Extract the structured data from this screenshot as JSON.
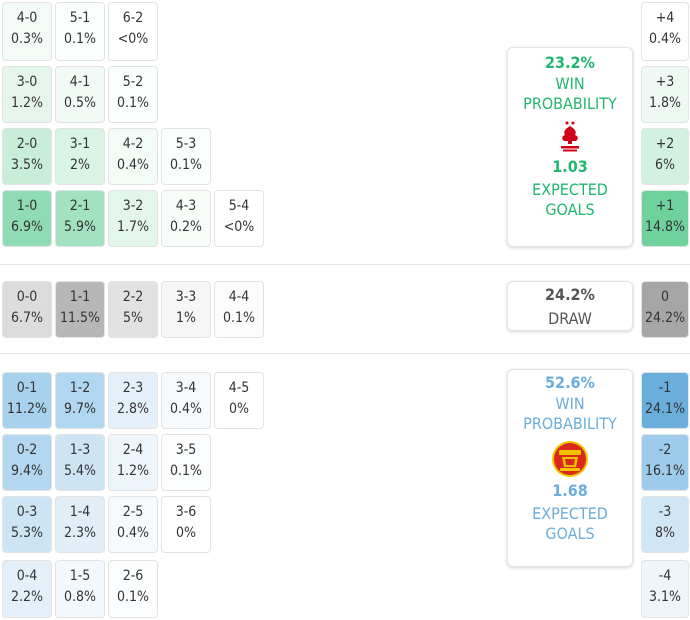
{
  "home": {
    "win_prob": "23.2%",
    "win_label": "WIN PROBABILITY",
    "xg": "1.03",
    "xg_label": "EXPECTED GOALS",
    "crest": "nottingham-forest-crest-icon",
    "color": "#21b76e"
  },
  "draw": {
    "prob": "24.2%",
    "label": "DRAW"
  },
  "away": {
    "win_prob": "52.6%",
    "win_label": "WIN PROBABILITY",
    "xg": "1.68",
    "xg_label": "EXPECTED GOALS",
    "crest": "manchester-united-crest-icon",
    "color": "#6aaedb"
  },
  "home_rows": [
    [
      {
        "score": "4-0",
        "pct": "0.3%"
      },
      {
        "score": "5-1",
        "pct": "0.1%"
      },
      {
        "score": "6-2",
        "pct": "<0%"
      }
    ],
    [
      {
        "score": "3-0",
        "pct": "1.2%"
      },
      {
        "score": "4-1",
        "pct": "0.5%"
      },
      {
        "score": "5-2",
        "pct": "0.1%"
      }
    ],
    [
      {
        "score": "2-0",
        "pct": "3.5%"
      },
      {
        "score": "3-1",
        "pct": "2%"
      },
      {
        "score": "4-2",
        "pct": "0.4%"
      },
      {
        "score": "5-3",
        "pct": "0.1%"
      }
    ],
    [
      {
        "score": "1-0",
        "pct": "6.9%"
      },
      {
        "score": "2-1",
        "pct": "5.9%"
      },
      {
        "score": "3-2",
        "pct": "1.7%"
      },
      {
        "score": "4-3",
        "pct": "0.2%"
      },
      {
        "score": "5-4",
        "pct": "<0%"
      }
    ]
  ],
  "draw_row": [
    {
      "score": "0-0",
      "pct": "6.7%"
    },
    {
      "score": "1-1",
      "pct": "11.5%"
    },
    {
      "score": "2-2",
      "pct": "5%"
    },
    {
      "score": "3-3",
      "pct": "1%"
    },
    {
      "score": "4-4",
      "pct": "0.1%"
    }
  ],
  "away_rows": [
    [
      {
        "score": "0-1",
        "pct": "11.2%"
      },
      {
        "score": "1-2",
        "pct": "9.7%"
      },
      {
        "score": "2-3",
        "pct": "2.8%"
      },
      {
        "score": "3-4",
        "pct": "0.4%"
      },
      {
        "score": "4-5",
        "pct": "0%"
      }
    ],
    [
      {
        "score": "0-2",
        "pct": "9.4%"
      },
      {
        "score": "1-3",
        "pct": "5.4%"
      },
      {
        "score": "2-4",
        "pct": "1.2%"
      },
      {
        "score": "3-5",
        "pct": "0.1%"
      }
    ],
    [
      {
        "score": "0-3",
        "pct": "5.3%"
      },
      {
        "score": "1-4",
        "pct": "2.3%"
      },
      {
        "score": "2-5",
        "pct": "0.4%"
      },
      {
        "score": "3-6",
        "pct": "0%"
      }
    ],
    [
      {
        "score": "0-4",
        "pct": "2.2%"
      },
      {
        "score": "1-5",
        "pct": "0.8%"
      },
      {
        "score": "2-6",
        "pct": "0.1%"
      }
    ]
  ],
  "margins": [
    {
      "margin": "+4",
      "pct": "0.4%"
    },
    {
      "margin": "+3",
      "pct": "1.8%"
    },
    {
      "margin": "+2",
      "pct": "6%"
    },
    {
      "margin": "+1",
      "pct": "14.8%"
    },
    {
      "margin": "0",
      "pct": "24.2%"
    },
    {
      "margin": "-1",
      "pct": "24.1%"
    },
    {
      "margin": "-2",
      "pct": "16.1%"
    },
    {
      "margin": "-3",
      "pct": "8%"
    },
    {
      "margin": "-4",
      "pct": "3.1%"
    }
  ]
}
